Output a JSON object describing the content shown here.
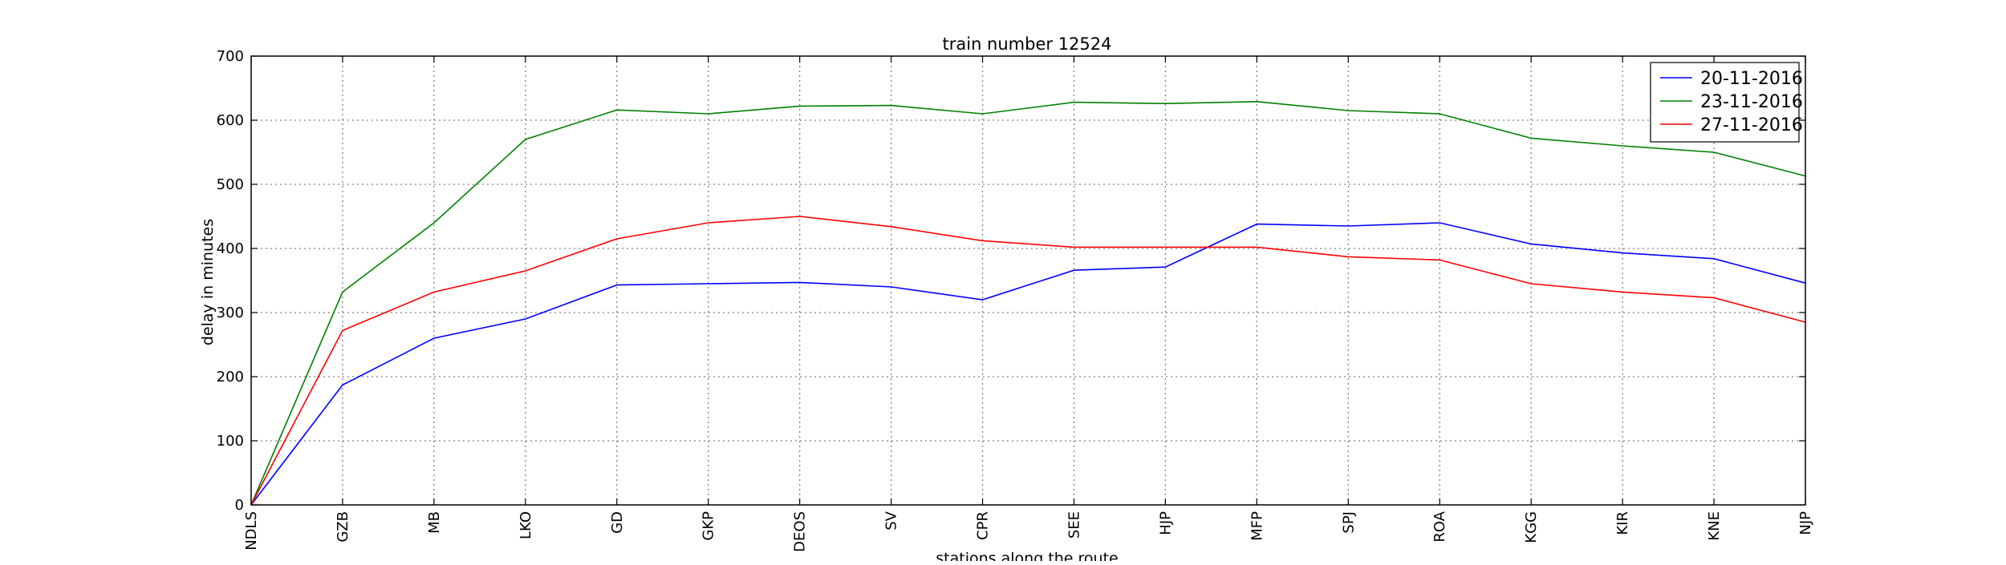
{
  "chart_data": {
    "type": "line",
    "title": "train number 12524",
    "xlabel": "stations along the route",
    "ylabel": "delay in minutes",
    "categories": [
      "NDLS",
      "GZB",
      "MB",
      "LKO",
      "GD",
      "GKP",
      "DEOS",
      "SV",
      "CPR",
      "SEE",
      "HJP",
      "MFP",
      "SPJ",
      "ROA",
      "KGG",
      "KIR",
      "KNE",
      "NJP"
    ],
    "ylim": [
      0,
      700
    ],
    "yticks": [
      0,
      100,
      200,
      300,
      400,
      500,
      600,
      700
    ],
    "grid": true,
    "legend_position": "top-right",
    "series": [
      {
        "name": "20-11-2016",
        "color": "#0000ff",
        "values": [
          0,
          187,
          260,
          290,
          343,
          345,
          347,
          340,
          320,
          366,
          371,
          438,
          435,
          440,
          407,
          393,
          384,
          346
        ]
      },
      {
        "name": "23-11-2016",
        "color": "#008000",
        "values": [
          0,
          332,
          440,
          570,
          616,
          610,
          622,
          623,
          610,
          628,
          626,
          629,
          615,
          610,
          572,
          560,
          550,
          513
        ]
      },
      {
        "name": "27-11-2016",
        "color": "#ff0000",
        "values": [
          0,
          272,
          332,
          365,
          415,
          440,
          450,
          434,
          412,
          402,
          402,
          402,
          387,
          382,
          345,
          332,
          323,
          285
        ]
      }
    ]
  }
}
